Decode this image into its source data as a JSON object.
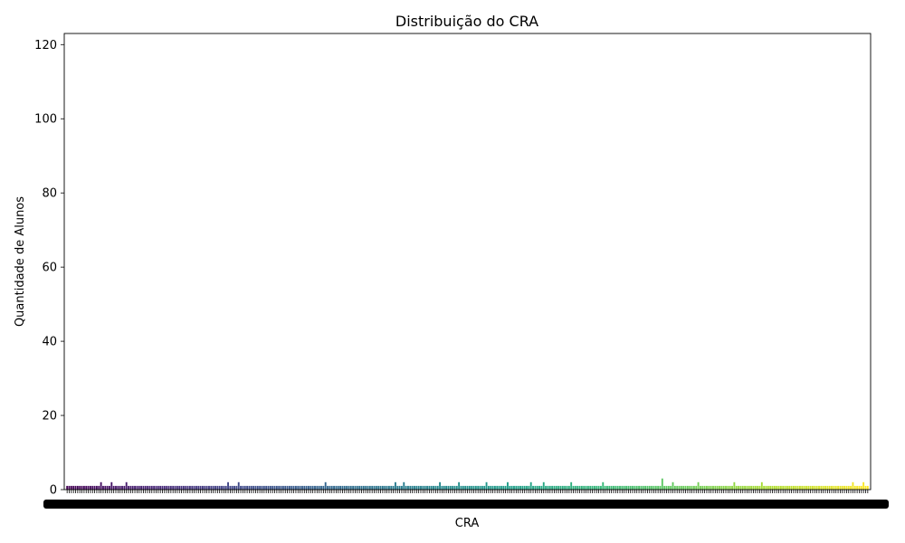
{
  "chart_data": {
    "type": "bar",
    "title": "Distribuição do CRA",
    "xlabel": "CRA",
    "ylabel": "Quantidade de Alunos",
    "ylim": [
      0,
      123
    ],
    "yticks": [
      0,
      20,
      40,
      60,
      80,
      100,
      120
    ],
    "grid": false,
    "legend": "none",
    "palette": "viridis",
    "colors": {
      "viridis_start": "#440154",
      "viridis_mid": "#21918c",
      "viridis_end": "#fde725",
      "axis": "#000000",
      "background": "#ffffff"
    },
    "category_count": 380,
    "x_tick_labels": "illegible (overlapping)",
    "values": [
      1,
      1,
      1,
      1,
      1,
      1,
      1,
      1,
      1,
      1,
      1,
      1,
      1,
      1,
      1,
      1,
      2,
      1,
      1,
      1,
      1,
      2,
      1,
      1,
      1,
      1,
      1,
      1,
      2,
      1,
      1,
      1,
      1,
      1,
      1,
      1,
      1,
      1,
      1,
      1,
      1,
      1,
      1,
      1,
      1,
      1,
      1,
      1,
      1,
      1,
      1,
      1,
      1,
      1,
      1,
      1,
      1,
      1,
      1,
      1,
      1,
      1,
      1,
      1,
      1,
      1,
      1,
      1,
      1,
      1,
      1,
      1,
      1,
      1,
      1,
      1,
      2,
      1,
      1,
      1,
      1,
      2,
      1,
      1,
      1,
      1,
      1,
      1,
      1,
      1,
      1,
      1,
      1,
      1,
      1,
      1,
      1,
      1,
      1,
      1,
      1,
      1,
      1,
      1,
      1,
      1,
      1,
      1,
      1,
      1,
      1,
      1,
      1,
      1,
      1,
      1,
      1,
      1,
      1,
      1,
      1,
      1,
      2,
      1,
      1,
      1,
      1,
      1,
      1,
      1,
      1,
      1,
      1,
      1,
      1,
      1,
      1,
      1,
      1,
      1,
      1,
      1,
      1,
      1,
      1,
      1,
      1,
      1,
      1,
      1,
      1,
      1,
      1,
      1,
      1,
      2,
      1,
      1,
      1,
      2,
      1,
      1,
      1,
      1,
      1,
      1,
      1,
      1,
      1,
      1,
      1,
      1,
      1,
      1,
      1,
      1,
      2,
      1,
      1,
      1,
      1,
      1,
      1,
      1,
      1,
      2,
      1,
      1,
      1,
      1,
      1,
      1,
      1,
      1,
      1,
      1,
      1,
      1,
      2,
      1,
      1,
      1,
      1,
      1,
      1,
      1,
      1,
      1,
      2,
      1,
      1,
      1,
      1,
      1,
      1,
      1,
      1,
      1,
      1,
      2,
      1,
      1,
      1,
      1,
      1,
      2,
      1,
      1,
      1,
      1,
      1,
      1,
      1,
      1,
      1,
      1,
      1,
      1,
      2,
      1,
      1,
      1,
      1,
      1,
      1,
      1,
      1,
      1,
      1,
      1,
      1,
      1,
      1,
      2,
      1,
      1,
      1,
      1,
      1,
      1,
      1,
      1,
      1,
      1,
      1,
      1,
      1,
      1,
      1,
      1,
      1,
      1,
      1,
      1,
      1,
      1,
      1,
      1,
      1,
      1,
      1,
      3,
      1,
      1,
      1,
      1,
      2,
      1,
      1,
      1,
      1,
      1,
      1,
      1,
      1,
      1,
      1,
      1,
      2,
      1,
      1,
      1,
      1,
      1,
      1,
      1,
      1,
      1,
      1,
      1,
      1,
      1,
      1,
      1,
      1,
      2,
      1,
      1,
      1,
      1,
      1,
      1,
      1,
      1,
      1,
      1,
      1,
      1,
      2,
      1,
      1,
      1,
      1,
      1,
      1,
      1,
      1,
      1,
      1,
      1,
      1,
      1,
      1,
      1,
      1,
      1,
      1,
      1,
      1,
      1,
      1,
      1,
      1,
      1,
      1,
      1,
      1,
      1,
      1,
      1,
      1,
      1,
      1,
      1,
      1,
      1,
      1,
      1,
      1,
      1,
      1,
      2,
      1,
      1,
      1,
      1,
      2,
      1,
      1
    ]
  }
}
